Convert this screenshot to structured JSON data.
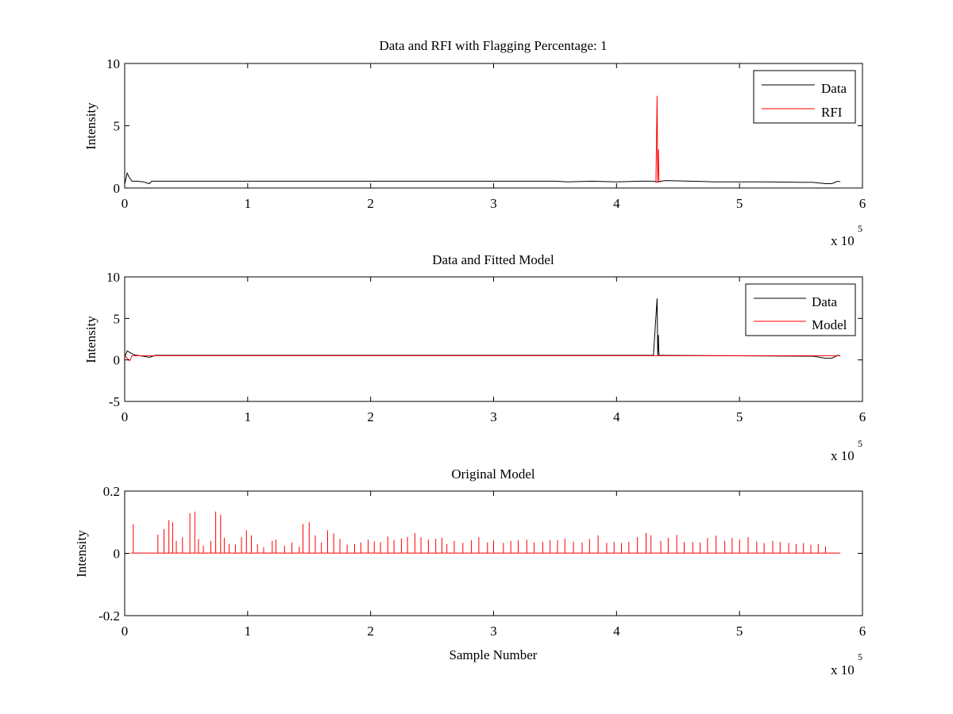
{
  "colors": {
    "data": "#000000",
    "rfi": "#ff0000",
    "model": "#ff0000",
    "axes": "#000000",
    "background": "#ffffff"
  },
  "chart_data": [
    {
      "type": "line",
      "title": "Data and RFI with Flagging Percentage: 1",
      "ylabel": "Intensity",
      "xlabel": "",
      "xlim": [
        0,
        600000
      ],
      "ylim": [
        0,
        10
      ],
      "x_ticks": [
        0,
        1,
        2,
        3,
        4,
        5,
        6
      ],
      "x_tick_labels": [
        "0",
        "1",
        "2",
        "3",
        "4",
        "5",
        "6"
      ],
      "x_multiplier_label": "x 10",
      "x_multiplier_exponent": "5",
      "y_ticks": [
        0,
        5,
        10
      ],
      "y_tick_labels": [
        "0",
        "5",
        "10"
      ],
      "legend": {
        "placement": "top-right",
        "entries": [
          "Data",
          "RFI"
        ]
      },
      "series": [
        {
          "name": "Data",
          "color": "#000000",
          "x": [
            0,
            2000,
            4000,
            6000,
            10000,
            15000,
            20000,
            22000,
            25000,
            40000,
            80000,
            120000,
            200000,
            300000,
            350000,
            360000,
            380000,
            400000,
            420000,
            430000,
            432000,
            434000,
            436000,
            440000,
            480000,
            520000,
            560000,
            570000,
            575000,
            580000,
            582000
          ],
          "y": [
            0.3,
            1.2,
            0.8,
            0.55,
            0.55,
            0.5,
            0.35,
            0.55,
            0.55,
            0.55,
            0.55,
            0.55,
            0.55,
            0.55,
            0.55,
            0.5,
            0.55,
            0.5,
            0.55,
            0.55,
            0.5,
            0.5,
            0.55,
            0.6,
            0.5,
            0.5,
            0.45,
            0.35,
            0.35,
            0.55,
            0.5
          ]
        },
        {
          "name": "RFI",
          "color": "#ff0000",
          "x": [
            432000,
            433000,
            433500,
            434000,
            434500,
            435000,
            436000
          ],
          "y": [
            0.5,
            7.4,
            0.5,
            3.1,
            0.5,
            0.5,
            0.5
          ]
        }
      ]
    },
    {
      "type": "line",
      "title": "Data and Fitted Model",
      "ylabel": "Intensity",
      "xlabel": "",
      "xlim": [
        0,
        600000
      ],
      "ylim": [
        -5,
        10
      ],
      "x_ticks": [
        0,
        1,
        2,
        3,
        4,
        5,
        6
      ],
      "x_tick_labels": [
        "0",
        "1",
        "2",
        "3",
        "4",
        "5",
        "6"
      ],
      "x_multiplier_label": "x 10",
      "x_multiplier_exponent": "5",
      "y_ticks": [
        -5,
        0,
        5,
        10
      ],
      "y_tick_labels": [
        "-5",
        "0",
        "5",
        "10"
      ],
      "legend": {
        "placement": "top-right",
        "entries": [
          "Data",
          "Model"
        ]
      },
      "series": [
        {
          "name": "Data",
          "color": "#000000",
          "x": [
            0,
            2000,
            4000,
            8000,
            15000,
            20000,
            25000,
            40000,
            200000,
            400000,
            430000,
            433000,
            433500,
            434000,
            434500,
            436000,
            560000,
            570000,
            575000,
            580000,
            582000
          ],
          "y": [
            0.3,
            1.1,
            0.9,
            0.6,
            0.45,
            0.3,
            0.55,
            0.55,
            0.55,
            0.55,
            0.55,
            7.4,
            0.55,
            3.0,
            0.55,
            0.55,
            0.45,
            0.2,
            0.2,
            0.55,
            0.5
          ]
        },
        {
          "name": "Model",
          "color": "#ff0000",
          "x": [
            0,
            4000,
            6000,
            20000,
            200000,
            400000,
            560000,
            582000
          ],
          "y": [
            0.5,
            -0.1,
            0.5,
            0.5,
            0.5,
            0.5,
            0.5,
            0.5
          ]
        }
      ]
    },
    {
      "type": "line",
      "title": "Original Model",
      "ylabel": "Intensity",
      "xlabel": "Sample Number",
      "xlim": [
        0,
        600000
      ],
      "ylim": [
        -0.2,
        0.2
      ],
      "x_ticks": [
        0,
        1,
        2,
        3,
        4,
        5,
        6
      ],
      "x_tick_labels": [
        "0",
        "1",
        "2",
        "3",
        "4",
        "5",
        "6"
      ],
      "x_multiplier_label": "x 10",
      "x_multiplier_exponent": "5",
      "y_ticks": [
        -0.2,
        0,
        0.2
      ],
      "y_tick_labels": [
        "-0.2",
        "0",
        "0.2"
      ],
      "series": [
        {
          "name": "",
          "color": "#ff0000",
          "spikes_x": [
            7000,
            27000,
            32000,
            36000,
            39000,
            42000,
            47000,
            53000,
            57000,
            60000,
            64000,
            70000,
            74000,
            78000,
            81000,
            85000,
            90000,
            95000,
            99000,
            103000,
            108000,
            113000,
            120000,
            123000,
            130000,
            136000,
            142000,
            145000,
            150000,
            155000,
            160000,
            165000,
            170000,
            175000,
            181000,
            187000,
            192000,
            198000,
            203000,
            208000,
            214000,
            219000,
            225000,
            230000,
            236000,
            241000,
            247000,
            253000,
            258000,
            262000,
            268000,
            275000,
            282000,
            288000,
            295000,
            300000,
            308000,
            314000,
            320000,
            327000,
            333000,
            340000,
            346000,
            352000,
            358000,
            365000,
            372000,
            378000,
            385000,
            392000,
            398000,
            404000,
            410000,
            417000,
            424000,
            428000,
            436000,
            442000,
            449000,
            455000,
            462000,
            468000,
            474000,
            481000,
            488000,
            494000,
            500000,
            507000,
            514000,
            520000,
            527000,
            533000,
            540000,
            546000,
            552000,
            558000,
            564000,
            570000
          ],
          "spikes_y": [
            0.093,
            0.06,
            0.078,
            0.107,
            0.1,
            0.04,
            0.052,
            0.129,
            0.134,
            0.046,
            0.025,
            0.04,
            0.134,
            0.124,
            0.05,
            0.03,
            0.028,
            0.052,
            0.074,
            0.058,
            0.03,
            0.02,
            0.04,
            0.044,
            0.025,
            0.035,
            0.022,
            0.094,
            0.1,
            0.058,
            0.035,
            0.074,
            0.064,
            0.046,
            0.028,
            0.03,
            0.035,
            0.044,
            0.038,
            0.036,
            0.054,
            0.043,
            0.048,
            0.053,
            0.065,
            0.052,
            0.044,
            0.047,
            0.05,
            0.03,
            0.04,
            0.034,
            0.042,
            0.052,
            0.035,
            0.042,
            0.034,
            0.04,
            0.042,
            0.044,
            0.035,
            0.037,
            0.043,
            0.042,
            0.048,
            0.038,
            0.035,
            0.046,
            0.058,
            0.034,
            0.036,
            0.033,
            0.037,
            0.052,
            0.066,
            0.058,
            0.04,
            0.05,
            0.059,
            0.037,
            0.036,
            0.035,
            0.049,
            0.057,
            0.04,
            0.05,
            0.044,
            0.052,
            0.038,
            0.033,
            0.04,
            0.036,
            0.034,
            0.03,
            0.033,
            0.028,
            0.03,
            0.022
          ],
          "baseline_y": 0.001
        }
      ]
    }
  ]
}
